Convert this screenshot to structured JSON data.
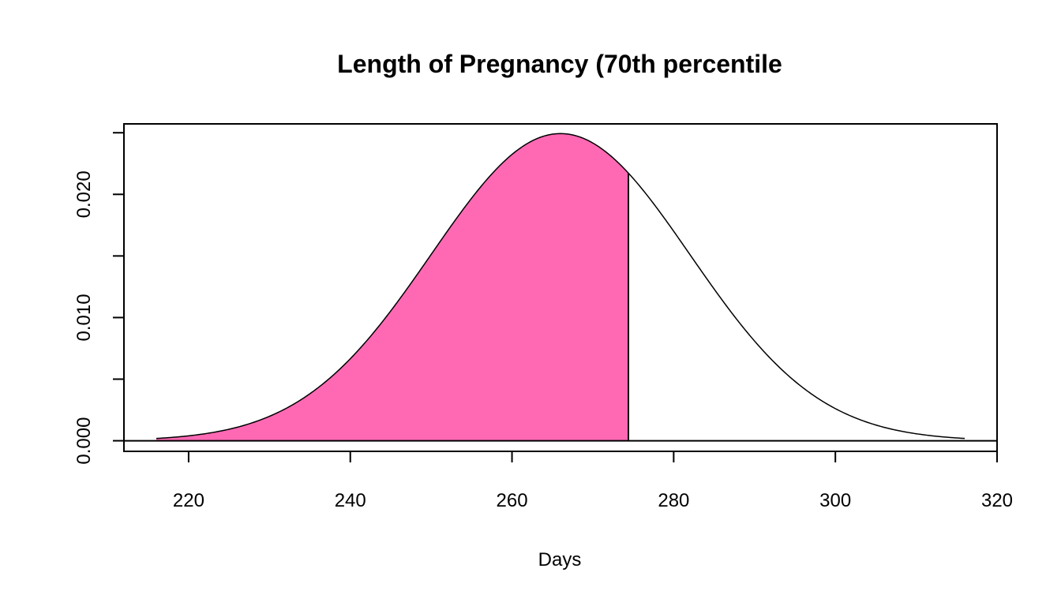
{
  "chart_data": {
    "type": "area",
    "title": "Length of Pregnancy (70th percentile",
    "xlabel": "Days",
    "ylabel": "",
    "xlim": [
      212,
      320
    ],
    "ylim": [
      -0.00086,
      0.02572
    ],
    "x_ticks": [
      220,
      240,
      260,
      280,
      300,
      320
    ],
    "x_tick_labels": [
      "220",
      "240",
      "260",
      "280",
      "300",
      "320"
    ],
    "y_ticks": [
      0.0,
      0.005,
      0.01,
      0.015,
      0.02,
      0.025
    ],
    "y_tick_labels": [
      "0.000",
      "",
      "0.010",
      "",
      "0.020",
      ""
    ],
    "distribution": {
      "name": "normal",
      "mean": 266,
      "sd": 16
    },
    "curve_x_range": [
      216,
      316
    ],
    "shaded_region": {
      "from": 216,
      "to": 274.4,
      "percentile": 70,
      "color": "#FF69B4"
    },
    "curve": {
      "x": [
        216,
        220,
        225,
        230,
        235,
        240,
        245,
        250,
        255,
        260,
        265,
        266,
        270,
        274.4,
        275,
        280,
        285,
        290,
        295,
        300,
        305,
        310,
        316
      ],
      "y": [
        0.00019,
        0.00042,
        0.00096,
        0.00198,
        0.00373,
        0.00642,
        0.01013,
        0.01463,
        0.0194,
        0.02322,
        0.02488,
        0.02493,
        0.02419,
        0.0216,
        0.02132,
        0.01706,
        0.0124,
        0.00812,
        0.0048,
        0.00256,
        0.00123,
        0.00054,
        0.00019
      ]
    },
    "grid": false,
    "legend": "none"
  }
}
